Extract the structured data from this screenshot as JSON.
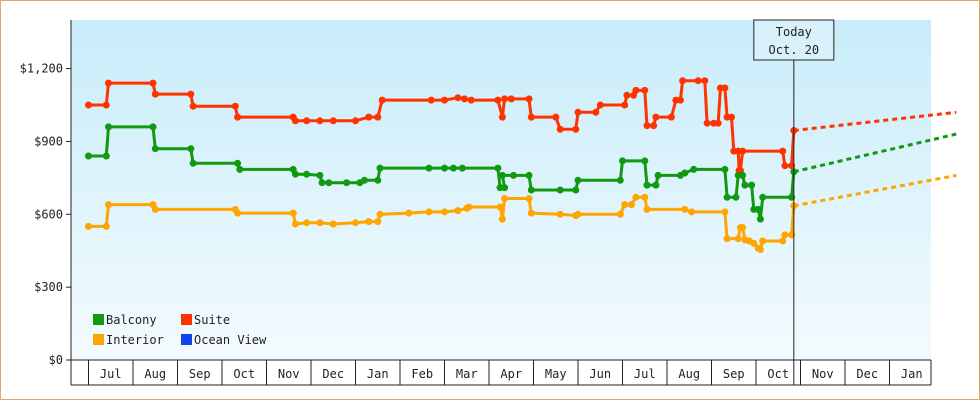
{
  "chart_data": {
    "type": "line",
    "title": "",
    "xlabel": "",
    "ylabel": "",
    "ylim": [
      0,
      1400
    ],
    "y_ticks": [
      {
        "value": 0,
        "label": "$0"
      },
      {
        "value": 300,
        "label": "$300"
      },
      {
        "value": 600,
        "label": "$600"
      },
      {
        "value": 900,
        "label": "$900"
      },
      {
        "value": 1200,
        "label": "$1,200"
      }
    ],
    "x_ticks": [
      "Jul",
      "Aug",
      "Sep",
      "Oct",
      "Nov",
      "Dec",
      "Jan",
      "Feb",
      "Mar",
      "Apr",
      "May",
      "Jun",
      "Jul",
      "Aug",
      "Sep",
      "Oct",
      "Nov",
      "Dec",
      "Jan"
    ],
    "x_range_months": [
      0,
      19.5
    ],
    "today": {
      "line1": "Today",
      "line2": "Oct. 20",
      "x": 15.85
    },
    "grid": false,
    "legend_position": "bottom-left",
    "legend": [
      {
        "name": "Balcony",
        "color": "#119911"
      },
      {
        "name": "Suite",
        "color": "#ff3300"
      },
      {
        "name": "Interior",
        "color": "#ffa500"
      },
      {
        "name": "Ocean View",
        "color": "#1144ee"
      }
    ],
    "series": [
      {
        "name": "Suite",
        "color": "#ff3300",
        "step_points": [
          [
            0,
            1050
          ],
          [
            0.4,
            1050
          ],
          [
            0.45,
            1140
          ],
          [
            1.45,
            1140
          ],
          [
            1.5,
            1095
          ],
          [
            2.3,
            1095
          ],
          [
            2.35,
            1045
          ],
          [
            3.3,
            1045
          ],
          [
            3.35,
            1000
          ],
          [
            4.6,
            1000
          ],
          [
            4.65,
            985
          ],
          [
            4.9,
            985
          ],
          [
            5.2,
            985
          ],
          [
            5.5,
            985
          ],
          [
            6.0,
            985
          ],
          [
            6.3,
            1000
          ],
          [
            6.5,
            1000
          ],
          [
            6.6,
            1070
          ],
          [
            7.7,
            1070
          ],
          [
            8.0,
            1070
          ],
          [
            8.3,
            1080
          ],
          [
            8.45,
            1075
          ],
          [
            8.6,
            1070
          ],
          [
            9.2,
            1070
          ],
          [
            9.3,
            1000
          ],
          [
            9.35,
            1075
          ],
          [
            9.5,
            1075
          ],
          [
            9.9,
            1075
          ],
          [
            9.95,
            1000
          ],
          [
            10.5,
            1000
          ],
          [
            10.6,
            950
          ],
          [
            10.95,
            950
          ],
          [
            11.0,
            1020
          ],
          [
            11.4,
            1020
          ],
          [
            11.5,
            1050
          ],
          [
            12.05,
            1050
          ],
          [
            12.1,
            1090
          ],
          [
            12.25,
            1090
          ],
          [
            12.3,
            1110
          ],
          [
            12.5,
            1110
          ],
          [
            12.55,
            965
          ],
          [
            12.7,
            965
          ],
          [
            12.75,
            1000
          ],
          [
            13.1,
            1000
          ],
          [
            13.2,
            1070
          ],
          [
            13.3,
            1070
          ],
          [
            13.35,
            1150
          ],
          [
            13.7,
            1150
          ],
          [
            13.85,
            1150
          ],
          [
            13.9,
            975
          ],
          [
            14.05,
            975
          ],
          [
            14.15,
            975
          ],
          [
            14.2,
            1120
          ],
          [
            14.3,
            1120
          ],
          [
            14.35,
            1000
          ],
          [
            14.45,
            1000
          ],
          [
            14.5,
            860
          ],
          [
            14.6,
            860
          ],
          [
            14.62,
            780
          ],
          [
            14.65,
            780
          ],
          [
            14.7,
            860
          ],
          [
            15.6,
            860
          ],
          [
            15.65,
            800
          ],
          [
            15.8,
            800
          ],
          [
            15.85,
            945
          ]
        ],
        "forecast": [
          [
            15.85,
            945
          ],
          [
            19.5,
            1020
          ]
        ]
      },
      {
        "name": "Balcony",
        "color": "#119911",
        "step_points": [
          [
            0,
            840
          ],
          [
            0.4,
            840
          ],
          [
            0.45,
            960
          ],
          [
            1.45,
            960
          ],
          [
            1.5,
            870
          ],
          [
            2.3,
            870
          ],
          [
            2.35,
            810
          ],
          [
            3.35,
            810
          ],
          [
            3.4,
            785
          ],
          [
            4.6,
            785
          ],
          [
            4.65,
            765
          ],
          [
            4.9,
            765
          ],
          [
            5.2,
            760
          ],
          [
            5.25,
            730
          ],
          [
            5.4,
            730
          ],
          [
            5.8,
            730
          ],
          [
            6.1,
            730
          ],
          [
            6.2,
            740
          ],
          [
            6.5,
            740
          ],
          [
            6.55,
            790
          ],
          [
            7.65,
            790
          ],
          [
            8.0,
            790
          ],
          [
            8.2,
            790
          ],
          [
            8.4,
            790
          ],
          [
            9.2,
            790
          ],
          [
            9.25,
            710
          ],
          [
            9.35,
            710
          ],
          [
            9.3,
            760
          ],
          [
            9.55,
            760
          ],
          [
            9.9,
            760
          ],
          [
            9.95,
            700
          ],
          [
            10.6,
            700
          ],
          [
            10.95,
            700
          ],
          [
            11.0,
            740
          ],
          [
            11.95,
            740
          ],
          [
            12.0,
            820
          ],
          [
            12.5,
            820
          ],
          [
            12.55,
            720
          ],
          [
            12.75,
            720
          ],
          [
            12.8,
            760
          ],
          [
            13.3,
            760
          ],
          [
            13.4,
            770
          ],
          [
            13.6,
            785
          ],
          [
            14.3,
            785
          ],
          [
            14.35,
            670
          ],
          [
            14.55,
            670
          ],
          [
            14.6,
            760
          ],
          [
            14.7,
            760
          ],
          [
            14.75,
            720
          ],
          [
            14.9,
            720
          ],
          [
            14.95,
            620
          ],
          [
            15.05,
            620
          ],
          [
            15.1,
            580
          ],
          [
            15.15,
            670
          ],
          [
            15.8,
            670
          ],
          [
            15.85,
            775
          ]
        ],
        "forecast": [
          [
            15.85,
            775
          ],
          [
            19.5,
            930
          ]
        ]
      },
      {
        "name": "Interior",
        "color": "#ffa500",
        "step_points": [
          [
            0,
            550
          ],
          [
            0.4,
            550
          ],
          [
            0.45,
            640
          ],
          [
            1.45,
            640
          ],
          [
            1.5,
            620
          ],
          [
            3.3,
            620
          ],
          [
            3.35,
            605
          ],
          [
            4.6,
            605
          ],
          [
            4.65,
            560
          ],
          [
            4.9,
            565
          ],
          [
            5.2,
            565
          ],
          [
            5.5,
            560
          ],
          [
            6.0,
            565
          ],
          [
            6.3,
            570
          ],
          [
            6.5,
            570
          ],
          [
            6.55,
            600
          ],
          [
            7.2,
            605
          ],
          [
            7.65,
            610
          ],
          [
            8.0,
            610
          ],
          [
            8.3,
            615
          ],
          [
            8.5,
            625
          ],
          [
            8.55,
            630
          ],
          [
            9.25,
            630
          ],
          [
            9.3,
            580
          ],
          [
            9.35,
            665
          ],
          [
            9.9,
            665
          ],
          [
            9.95,
            605
          ],
          [
            10.6,
            600
          ],
          [
            10.95,
            595
          ],
          [
            11.0,
            600
          ],
          [
            11.95,
            600
          ],
          [
            12.05,
            640
          ],
          [
            12.2,
            640
          ],
          [
            12.3,
            670
          ],
          [
            12.5,
            670
          ],
          [
            12.55,
            620
          ],
          [
            13.4,
            620
          ],
          [
            13.55,
            610
          ],
          [
            14.3,
            610
          ],
          [
            14.35,
            500
          ],
          [
            14.6,
            500
          ],
          [
            14.65,
            545
          ],
          [
            14.7,
            545
          ],
          [
            14.75,
            495
          ],
          [
            14.85,
            490
          ],
          [
            14.95,
            480
          ],
          [
            15.05,
            460
          ],
          [
            15.1,
            455
          ],
          [
            15.15,
            490
          ],
          [
            15.6,
            490
          ],
          [
            15.65,
            515
          ],
          [
            15.8,
            515
          ],
          [
            15.85,
            635
          ]
        ],
        "forecast": [
          [
            15.85,
            635
          ],
          [
            19.5,
            760
          ]
        ]
      },
      {
        "name": "Ocean View",
        "color": "#1144ee",
        "step_points": [],
        "forecast": []
      }
    ]
  }
}
